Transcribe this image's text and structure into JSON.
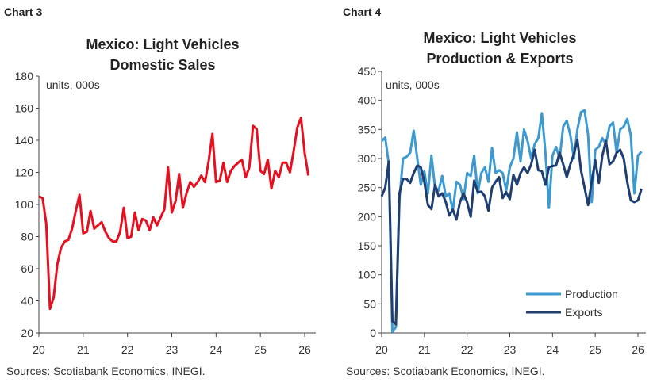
{
  "chart_data": [
    {
      "type": "line",
      "label": "Chart 3",
      "title": [
        "Mexico: Light Vehicles",
        "Domestic Sales"
      ],
      "unit_note": "units, 000s",
      "source": "Sources: Scotiabank Economics, INEGI.",
      "x_start": "2020-01",
      "frequency": "monthly",
      "xticks": [
        "20",
        "21",
        "22",
        "23",
        "24",
        "25",
        "26"
      ],
      "ylim": [
        20,
        180
      ],
      "yticks": [
        20,
        40,
        60,
        80,
        100,
        120,
        140,
        160,
        180
      ],
      "grid": false,
      "series": [
        {
          "color": "#e8101f",
          "values": [
            105,
            104,
            88,
            35,
            42,
            63,
            73,
            77,
            78,
            85,
            96,
            106,
            82,
            83,
            96,
            85,
            87,
            89,
            83,
            79,
            77,
            77,
            83,
            98,
            79,
            80,
            95,
            84,
            91,
            90,
            84,
            92,
            87,
            92,
            97,
            123,
            95,
            102,
            119,
            98,
            107,
            114,
            111,
            114,
            118,
            114,
            127,
            144,
            114,
            115,
            126,
            114,
            121,
            124,
            126,
            128,
            117,
            123,
            149,
            147,
            121,
            119,
            128,
            110,
            121,
            117,
            126,
            126,
            120,
            133,
            148,
            154,
            132,
            118
          ]
        }
      ]
    },
    {
      "type": "line",
      "label": "Chart 4",
      "title": [
        "Mexico: Light Vehicles",
        "Production & Exports"
      ],
      "unit_note": "units, 000s",
      "source": "Sources: Scotiabank Economics, INEGI.",
      "x_start": "2020-01",
      "frequency": "monthly",
      "xticks": [
        "20",
        "21",
        "22",
        "23",
        "24",
        "25",
        "26"
      ],
      "ylim": [
        0,
        450
      ],
      "yticks": [
        0,
        50,
        100,
        150,
        200,
        250,
        300,
        350,
        400,
        450
      ],
      "grid": false,
      "legend": "bottom-right",
      "series": [
        {
          "name": "Production",
          "color": "#3d9ad1",
          "values": [
            330,
            336,
            290,
            2,
            10,
            230,
            300,
            303,
            310,
            348,
            300,
            255,
            278,
            240,
            305,
            250,
            245,
            270,
            235,
            240,
            210,
            260,
            255,
            230,
            275,
            270,
            305,
            240,
            275,
            285,
            260,
            318,
            275,
            280,
            275,
            245,
            285,
            300,
            345,
            295,
            350,
            330,
            300,
            325,
            335,
            378,
            310,
            215,
            305,
            320,
            300,
            355,
            365,
            340,
            300,
            350,
            380,
            383,
            340,
            225,
            315,
            320,
            335,
            325,
            355,
            362,
            310,
            350,
            355,
            368,
            340,
            240,
            305,
            312
          ]
        },
        {
          "name": "Exports",
          "color": "#1f3f73",
          "values": [
            235,
            250,
            295,
            20,
            15,
            240,
            265,
            265,
            258,
            275,
            288,
            285,
            260,
            220,
            213,
            255,
            235,
            240,
            225,
            202,
            212,
            195,
            225,
            240,
            225,
            200,
            262,
            242,
            243,
            235,
            210,
            250,
            260,
            268,
            232,
            242,
            230,
            272,
            255,
            275,
            285,
            275,
            290,
            315,
            280,
            278,
            255,
            285,
            287,
            288,
            310,
            290,
            268,
            290,
            308,
            332,
            280,
            250,
            220,
            260,
            297,
            258,
            305,
            330,
            290,
            295,
            310,
            315,
            300,
            260,
            228,
            225,
            228,
            248
          ]
        }
      ]
    }
  ]
}
